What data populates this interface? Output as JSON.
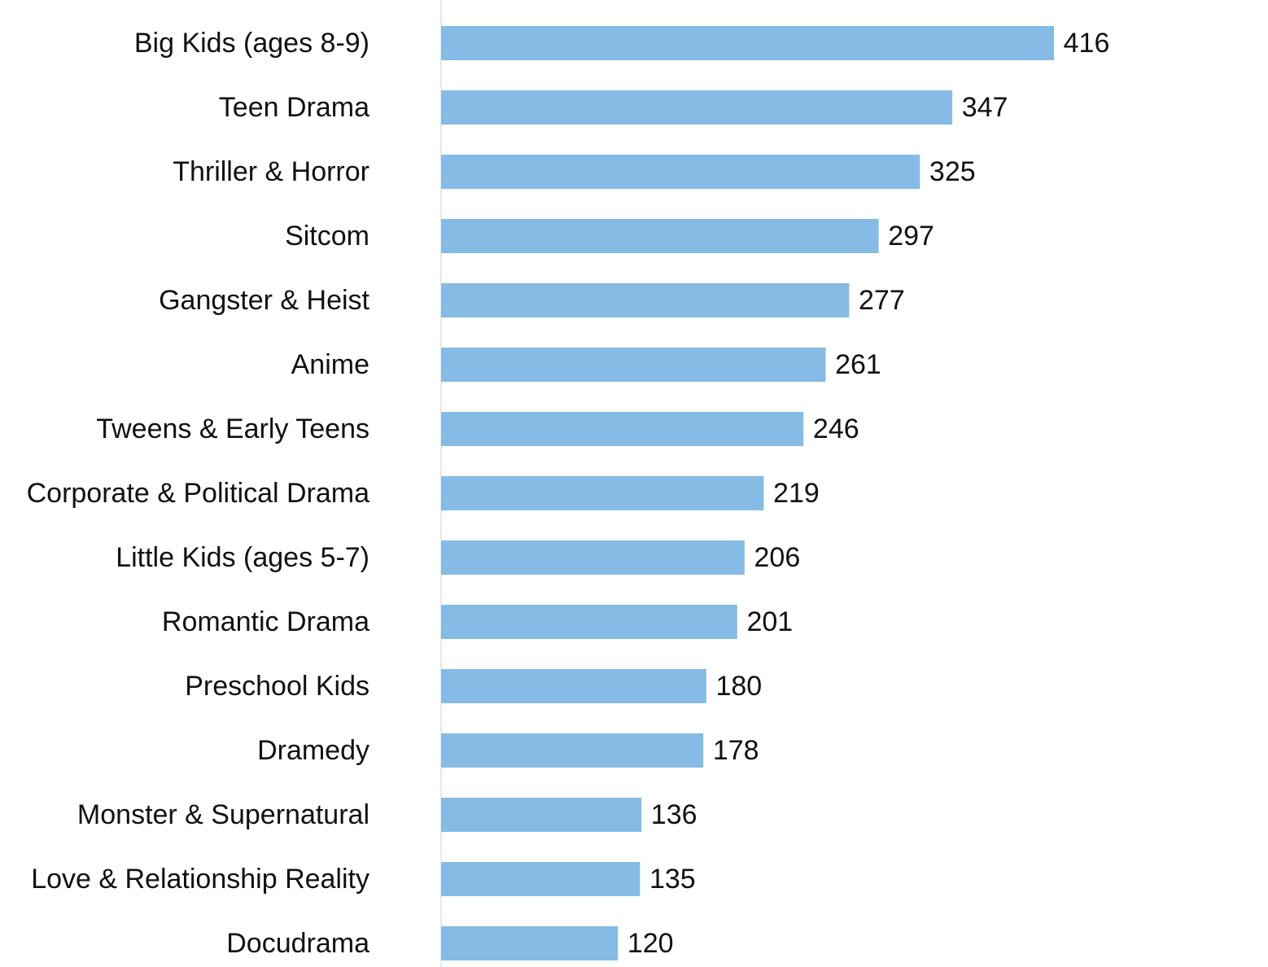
{
  "chart_data": {
    "type": "bar",
    "orientation": "horizontal",
    "title": "",
    "xlabel": "",
    "ylabel": "",
    "xlim": [
      0,
      416
    ],
    "grid": false,
    "bar_color": "#85bbe4",
    "text_color": "#111111",
    "categories": [
      "Big Kids (ages 8-9)",
      "Teen Drama",
      "Thriller & Horror",
      "Sitcom",
      "Gangster & Heist",
      "Anime",
      "Tweens & Early Teens",
      "Corporate & Political Drama",
      "Little Kids (ages 5-7)",
      "Romantic Drama",
      "Preschool Kids",
      "Dramedy",
      "Monster & Supernatural",
      "Love & Relationship Reality",
      "Docudrama"
    ],
    "values": [
      416,
      347,
      325,
      297,
      277,
      261,
      246,
      219,
      206,
      201,
      180,
      178,
      136,
      135,
      120
    ]
  }
}
